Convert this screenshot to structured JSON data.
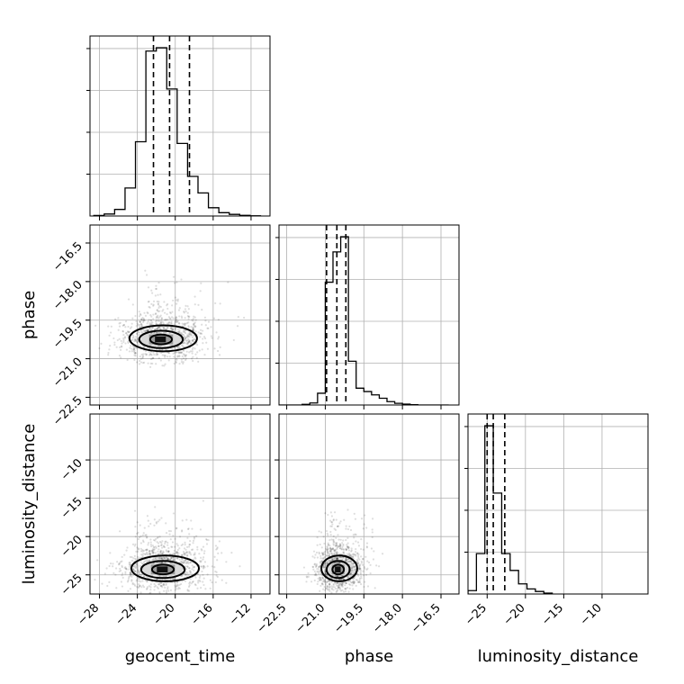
{
  "chart_data": {
    "type": "corner",
    "parameters": [
      "geocent_time",
      "phase",
      "luminosity_distance"
    ],
    "axis_labels": {
      "geocent_time": "geocent_time",
      "phase": "phase",
      "luminosity_distance": "luminosity_distance"
    },
    "ranges": {
      "geocent_time": [
        -29,
        -10
      ],
      "phase": [
        -22.8,
        -15.8
      ],
      "luminosity_distance": [
        -27.5,
        -4
      ]
    },
    "ticks": {
      "geocent_time": {
        "values": [
          -28,
          -24,
          -20,
          -16,
          -12
        ],
        "labels": [
          "−28",
          "−24",
          "−20",
          "−16",
          "−12"
        ]
      },
      "phase": {
        "values": [
          -22.5,
          -21.0,
          -19.5,
          -18.0,
          -16.5
        ],
        "labels": [
          "−22.5",
          "−21.0",
          "−19.5",
          "−18.0",
          "−16.5"
        ]
      },
      "luminosity_distance": {
        "values": [
          -25,
          -20,
          -15,
          -10
        ],
        "labels": [
          "−25",
          "−20",
          "−15",
          "−10"
        ]
      }
    },
    "quantiles": {
      "geocent_time": [
        -22.3,
        -20.6,
        -18.5
      ],
      "phase": [
        -20.95,
        -20.55,
        -20.2
      ],
      "luminosity_distance": [
        -25.0,
        -24.2,
        -22.7
      ]
    },
    "histograms": {
      "geocent_time": {
        "bin_edges": [
          -28.6,
          -27.5,
          -26.4,
          -25.3,
          -24.2,
          -23.1,
          -22.0,
          -20.9,
          -19.8,
          -18.7,
          -17.6,
          -16.5,
          -15.4,
          -14.3,
          -13.2,
          -12.1,
          -11.0
        ],
        "counts": [
          0.003,
          0.012,
          0.04,
          0.17,
          0.45,
          1.0,
          1.02,
          0.77,
          0.44,
          0.24,
          0.14,
          0.05,
          0.02,
          0.01,
          0.004,
          0.001
        ]
      },
      "phase": {
        "bin_edges": [
          -22.8,
          -22.5,
          -22.2,
          -21.9,
          -21.6,
          -21.3,
          -21.0,
          -20.7,
          -20.4,
          -20.1,
          -19.8,
          -19.5,
          -19.2,
          -18.9,
          -18.6,
          -18.3,
          -18.0,
          -17.7,
          -17.4,
          -17.1,
          -16.8,
          -16.5,
          -16.2
        ],
        "counts": [
          0,
          0,
          0,
          0.004,
          0.012,
          0.07,
          0.73,
          0.91,
          1.0,
          0.26,
          0.1,
          0.08,
          0.06,
          0.04,
          0.02,
          0.01,
          0.005,
          0.002,
          0,
          0,
          0,
          0
        ]
      },
      "luminosity_distance": {
        "bin_edges": [
          -27.5,
          -26.4,
          -25.3,
          -24.2,
          -23.1,
          -22.0,
          -20.9,
          -19.8,
          -18.7,
          -17.6,
          -16.5
        ],
        "counts": [
          0.02,
          0.24,
          1.0,
          0.6,
          0.24,
          0.14,
          0.06,
          0.03,
          0.015,
          0.005
        ]
      }
    },
    "joint": {
      "geocent_time|phase": {
        "peak": [
          -21.5,
          -20.25
        ],
        "sigma": [
          2.3,
          0.42
        ],
        "corr": 0
      },
      "geocent_time|luminosity_distance": {
        "peak": [
          -21.3,
          -24.3
        ],
        "sigma": [
          2.3,
          1.4
        ],
        "corr": 0
      },
      "phase|luminosity_distance": {
        "peak": [
          -20.5,
          -24.3
        ],
        "sigma": [
          0.45,
          1.4
        ],
        "corr": 0
      }
    },
    "colors": {
      "line": "#000000",
      "grid": "#b0b0b0",
      "points": "#000000",
      "quantile": "#000000"
    },
    "grid": true
  }
}
